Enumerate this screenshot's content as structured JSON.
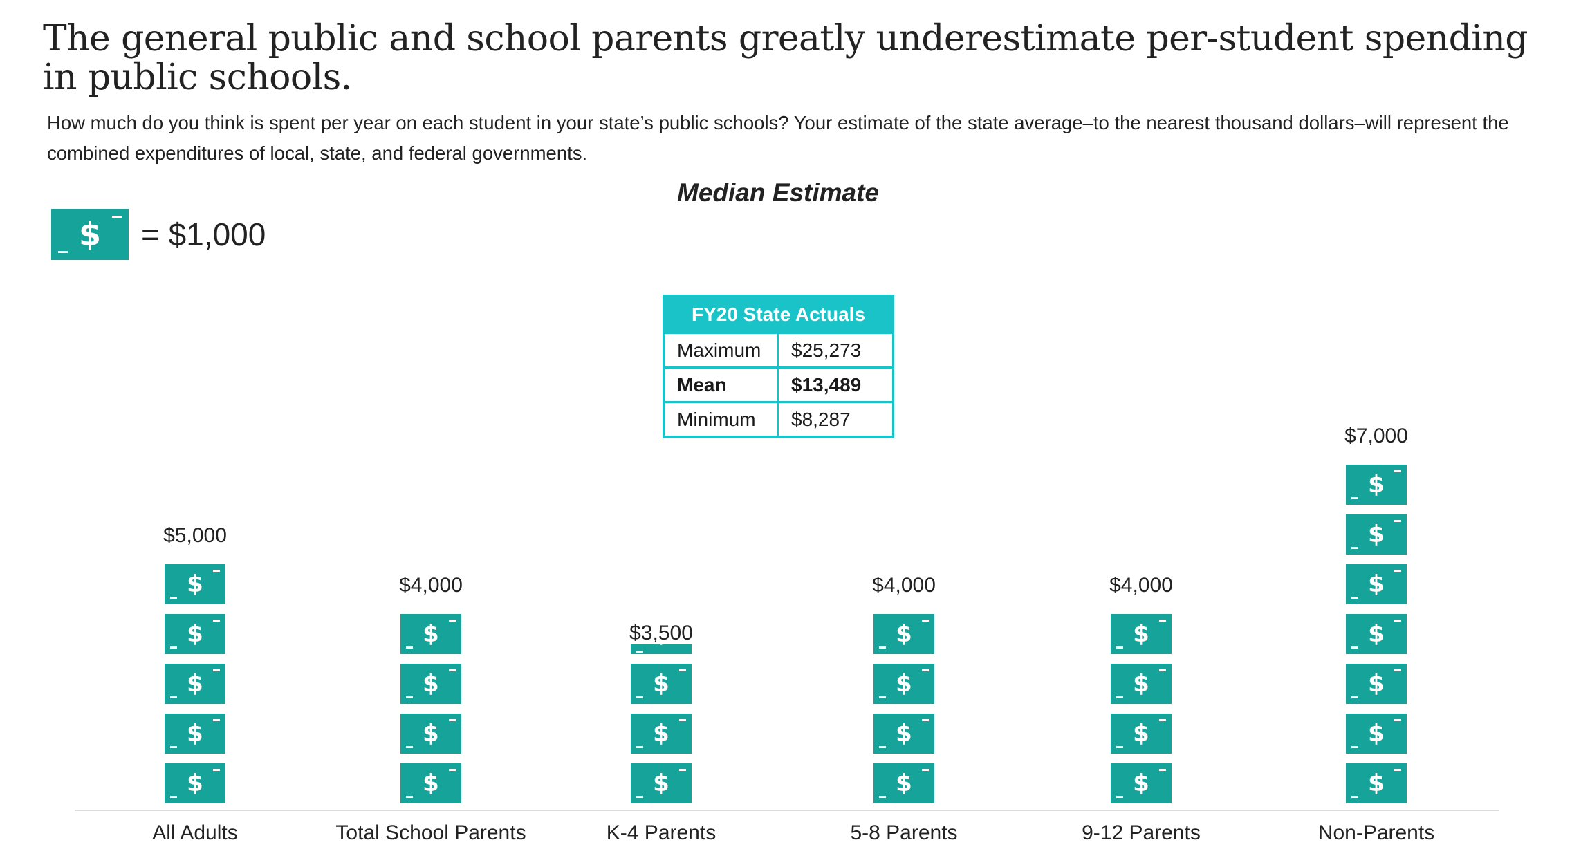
{
  "title": "The general public and school parents greatly underestimate per-student spending in public schools.",
  "question": "How much do you think is spent per year on each student in your state’s public schools? Your estimate of the state average–to the nearest thousand dollars–will represent the combined expenditures of local, state, and federal governments.",
  "legend": {
    "symbol": "$",
    "equals_label": "= $1,000"
  },
  "colors": {
    "bill": "#16a39a",
    "table_accent": "#1ac3c7"
  },
  "icon": "dollar-bill-icon",
  "actuals_table": {
    "header": "FY20 State Actuals",
    "rows": [
      {
        "label": "Maximum",
        "value": "$25,273",
        "bold": false
      },
      {
        "label": "Mean",
        "value": "$13,489",
        "bold": true
      },
      {
        "label": "Minimum",
        "value": "$8,287",
        "bold": false
      }
    ]
  },
  "chart_data": {
    "type": "bar",
    "title": "Median Estimate",
    "unit_per_icon": 1000,
    "categories": [
      "All Adults",
      "Total School Parents",
      "K-4 Parents",
      "5-8 Parents",
      "9-12 Parents",
      "Non-Parents"
    ],
    "values": [
      5000,
      4000,
      3500,
      4000,
      4000,
      7000
    ],
    "value_labels": [
      "$5,000",
      "$4,000",
      "$3,500",
      "$4,000",
      "$4,000",
      "$7,000"
    ],
    "xlabel": "",
    "ylabel": ""
  }
}
